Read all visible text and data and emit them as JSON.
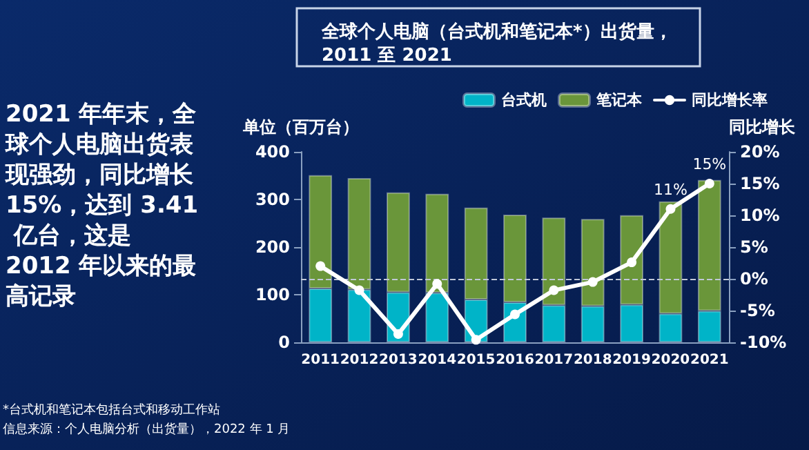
{
  "chart_data": {
    "type": "bar",
    "title": "全球个人电脑（台式机和笔记本*）出货量，2011 至 2021",
    "ylabel": "单位（百万台）",
    "y2label": "同比增长",
    "categories": [
      "2011",
      "2012",
      "2013",
      "2014",
      "2015",
      "2016",
      "2017",
      "2018",
      "2019",
      "2020",
      "2021"
    ],
    "stacked": true,
    "series": [
      {
        "name": "台式机",
        "color": "#00b4c8",
        "values": [
          113,
          111,
          105,
          104,
          90,
          84,
          78,
          76,
          79,
          60,
          66
        ]
      },
      {
        "name": "笔记本",
        "color": "#6a963a",
        "values": [
          238,
          234,
          210,
          208,
          193,
          184,
          184,
          183,
          188,
          236,
          275
        ]
      },
      {
        "name": "同比增长率",
        "type": "line",
        "axis": "y2",
        "color": "#ffffff",
        "marker": "circle",
        "values": [
          2.0,
          -1.8,
          -8.7,
          -0.8,
          -9.6,
          -5.6,
          -1.8,
          -0.5,
          2.6,
          11,
          15
        ],
        "value_labels": [
          null,
          null,
          null,
          null,
          null,
          null,
          null,
          null,
          null,
          "11%",
          "15%"
        ]
      }
    ],
    "ylim": [
      0,
      400
    ],
    "yticks": [
      0,
      100,
      200,
      300,
      400
    ],
    "y2lim": [
      -10,
      20
    ],
    "y2ticks": [
      {
        "value": -10,
        "label": "-10%"
      },
      {
        "value": -5,
        "label": "-5%"
      },
      {
        "value": 0,
        "label": "0%"
      },
      {
        "value": 5,
        "label": "5%"
      },
      {
        "value": 10,
        "label": "10%"
      },
      {
        "value": 15,
        "label": "15%"
      },
      {
        "value": 20,
        "label": "20%"
      }
    ],
    "ref_lines": [
      {
        "axis": "y2",
        "value": 0,
        "label": null,
        "line_style": "dashed",
        "color": "#c0c8d8"
      }
    ],
    "legend": "top",
    "grid": false,
    "annotations": [
      "2021 年年末，全球个人电脑出货表现强劲，同比增长 15%，达到 3.41 亿台，这是 2012 年以来的最高记录",
      "*台式机和笔记本包括台式和移动工作站",
      "信息来源：个人电脑分析（出货量），2022 年 1 月"
    ]
  }
}
